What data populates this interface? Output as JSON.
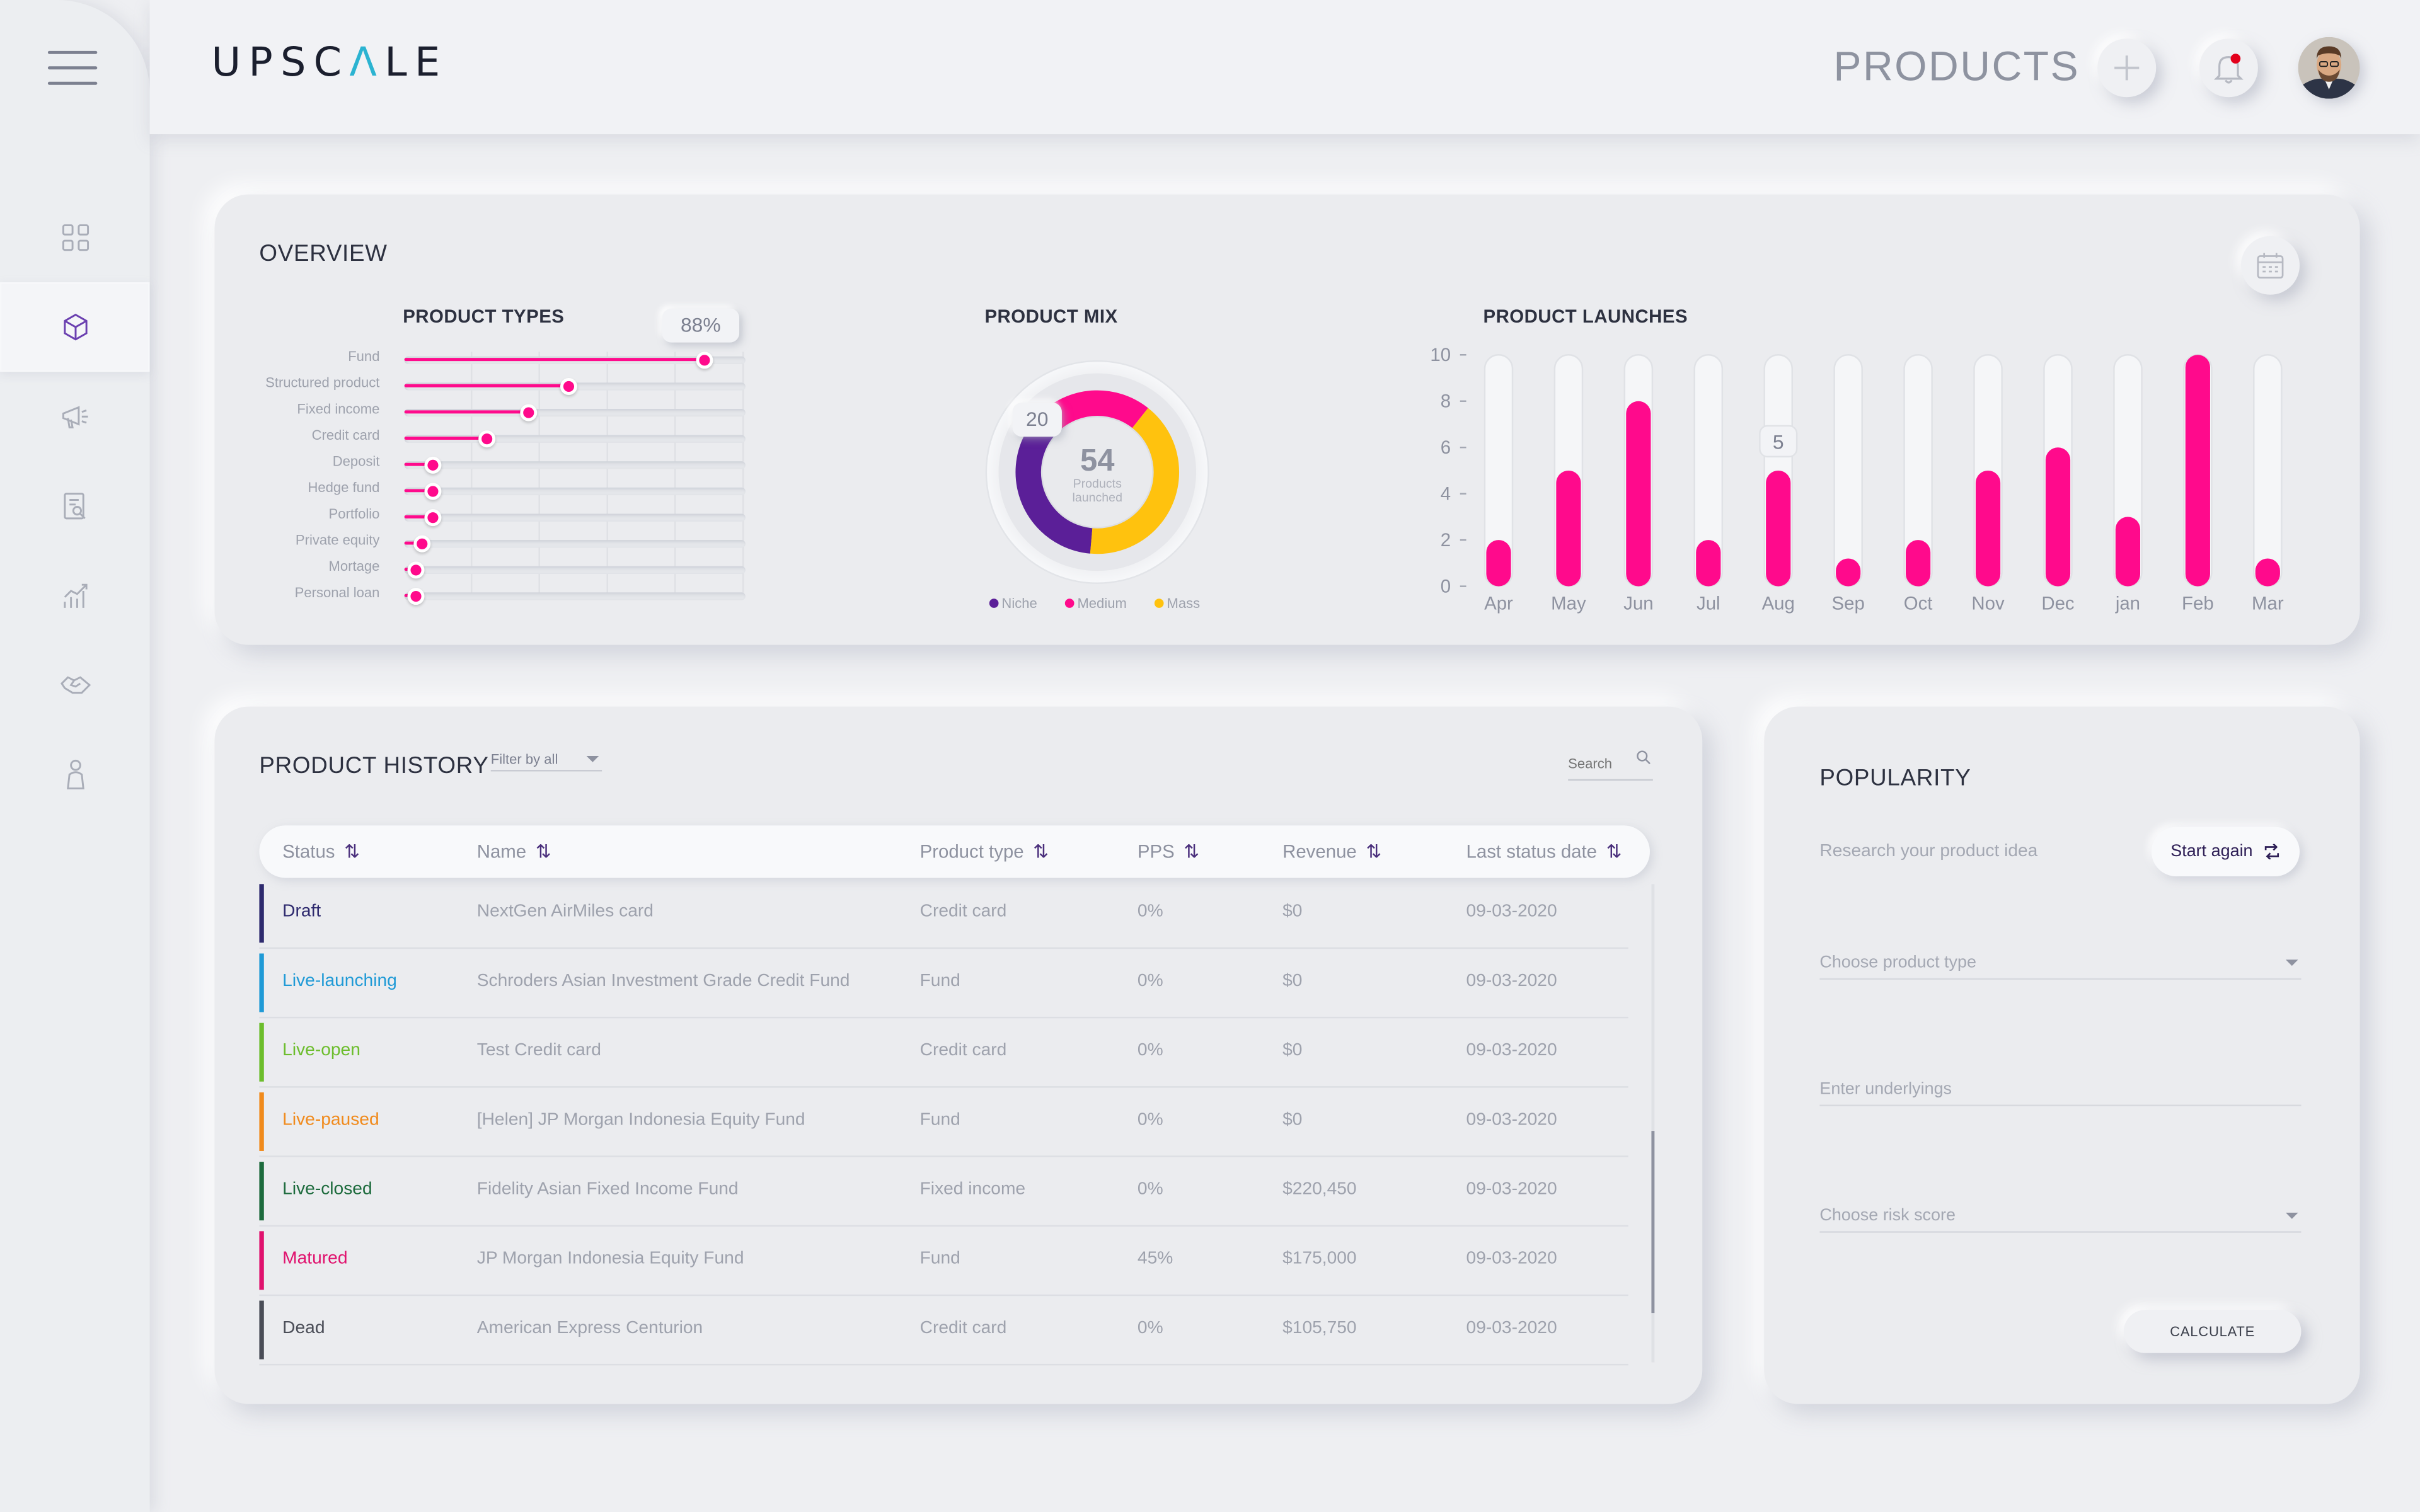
{
  "app": {
    "logo_part1": "UPSC",
    "logo_a": "Λ",
    "logo_part2": "LE",
    "page_title": "PRODUCTS"
  },
  "icons": {
    "menu": "hamburger-icon",
    "add": "plus-icon",
    "notifications": "bell-icon",
    "calendar": "calendar-icon",
    "search": "search-icon",
    "refresh": "refresh-icon"
  },
  "colors": {
    "accent": "#ff0a8c",
    "niche": "#5b1f98",
    "medium": "#ff0a8c",
    "mass": "#ffc20e"
  },
  "sidebar": {
    "items": [
      "dashboard-icon",
      "products-icon",
      "campaign-icon",
      "reports-icon",
      "analytics-icon",
      "deals-icon",
      "users-icon"
    ],
    "active_index": 1
  },
  "overview": {
    "title": "OVERVIEW",
    "product_types": {
      "title": "PRODUCT TYPES",
      "tooltip": "88%",
      "items": [
        {
          "label": "Fund",
          "value": 0.88
        },
        {
          "label": "Structured product",
          "value": 0.48
        },
        {
          "label": "Fixed income",
          "value": 0.36
        },
        {
          "label": "Credit card",
          "value": 0.24
        },
        {
          "label": "Deposit",
          "value": 0.08
        },
        {
          "label": "Hedge fund",
          "value": 0.08
        },
        {
          "label": "Portfolio",
          "value": 0.08
        },
        {
          "label": "Private equity",
          "value": 0.05
        },
        {
          "label": "Mortage",
          "value": 0.03
        },
        {
          "label": "Personal loan",
          "value": 0.03
        }
      ]
    },
    "product_mix": {
      "title": "PRODUCT MIX",
      "center_value": "54",
      "center_label_line1": "Products",
      "center_label_line2": "launched",
      "callout": "20",
      "segments": [
        {
          "name": "Niche",
          "value": 20
        },
        {
          "name": "Medium",
          "value": 12
        },
        {
          "name": "Mass",
          "value": 22
        }
      ]
    },
    "product_launches": {
      "title": "PRODUCT LAUNCHES",
      "tooltip": "5"
    }
  },
  "chart_data": {
    "type": "bar",
    "title": "PRODUCT LAUNCHES",
    "categories": [
      "Apr",
      "May",
      "Jun",
      "Jul",
      "Aug",
      "Sep",
      "Oct",
      "Nov",
      "Dec",
      "jan",
      "Feb",
      "Mar"
    ],
    "values": [
      2,
      5,
      8,
      2,
      5,
      1,
      2,
      5,
      6,
      3,
      10,
      1
    ],
    "yticks": [
      "0",
      "2",
      "4",
      "6",
      "8",
      "10"
    ],
    "ylim": [
      0,
      10
    ]
  },
  "history": {
    "title": "PRODUCT HISTORY",
    "filter_label": "Filter by all",
    "search_placeholder": "Search",
    "columns": [
      "Status",
      "Name",
      "Product type",
      "PPS",
      "Revenue",
      "Last status date"
    ],
    "sort_glyph": "⇅",
    "rows": [
      {
        "status": "Draft",
        "color": "#2e2a6e",
        "name": "NextGen AirMiles card",
        "type": "Credit card",
        "pps": "0%",
        "revenue": "$0",
        "date": "09-03-2020"
      },
      {
        "status": "Live-launching",
        "color": "#1f9ad6",
        "name": "Schroders Asian Investment Grade Credit Fund",
        "type": "Fund",
        "pps": "0%",
        "revenue": "$0",
        "date": "09-03-2020"
      },
      {
        "status": "Live-open",
        "color": "#6cbd2c",
        "name": "Test Credit card",
        "type": "Credit card",
        "pps": "0%",
        "revenue": "$0",
        "date": "09-03-2020"
      },
      {
        "status": "Live-paused",
        "color": "#f08a1c",
        "name": "[Helen] JP Morgan Indonesia Equity Fund",
        "type": "Fund",
        "pps": "0%",
        "revenue": "$0",
        "date": "09-03-2020"
      },
      {
        "status": "Live-closed",
        "color": "#1d6b3d",
        "name": "Fidelity Asian Fixed Income Fund",
        "type": "Fixed income",
        "pps": "0%",
        "revenue": "$220,450",
        "date": "09-03-2020"
      },
      {
        "status": "Matured",
        "color": "#e0126e",
        "name": "JP Morgan Indonesia Equity Fund",
        "type": "Fund",
        "pps": "45%",
        "revenue": "$175,000",
        "date": "09-03-2020"
      },
      {
        "status": "Dead",
        "color": "#4a4d57",
        "name": "American Express Centurion",
        "type": "Credit card",
        "pps": "0%",
        "revenue": "$105,750",
        "date": "09-03-2020"
      }
    ]
  },
  "popularity": {
    "title": "POPULARITY",
    "subtitle": "Research your product idea",
    "start_again": "Start again",
    "product_type_placeholder": "Choose product type",
    "underlyings_placeholder": "Enter underlyings",
    "risk_placeholder": "Choose risk score",
    "calculate": "CALCULATE"
  }
}
